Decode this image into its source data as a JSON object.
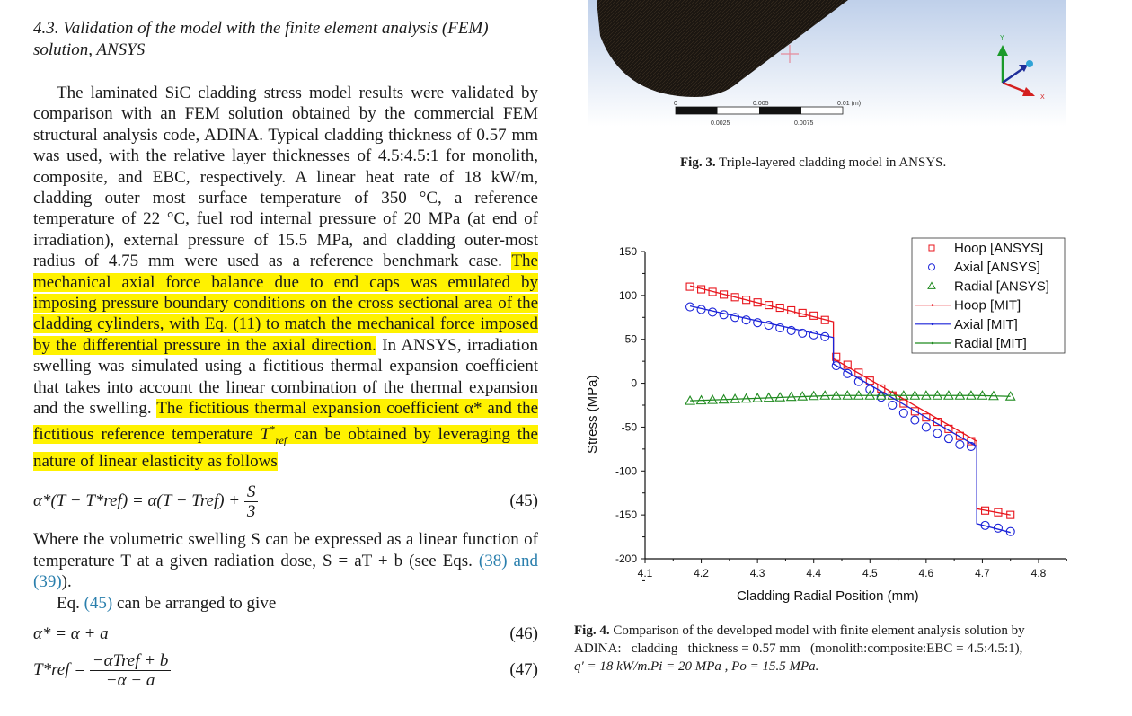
{
  "section": {
    "title_line1": "4.3. Validation of the model with the finite element analysis (FEM)",
    "title_line2": "solution, ANSYS"
  },
  "paragraph1": {
    "plain1": "The laminated SiC cladding stress model results were validated by comparison with an FEM solution obtained by the commercial FEM structural analysis code, ADINA. Typical cladding thickness of 0.57 mm was used, with the relative layer thicknesses of 4.5:4.5:1 for monolith, composite, and EBC, respectively. A linear heat rate of 18 kW/m, cladding outer most surface temperature of 350 °C, a reference temperature of 22 °C, fuel rod internal pressure of 20 MPa (at end of irradiation), external pressure of 15.5 MPa, and cladding outer-most radius of 4.75 mm were used as a reference benchmark case.",
    "highlight1": "The mechanical axial force balance due to end caps was emulated by imposing pressure boundary conditions on the cross sectional area of the cladding cylinders, with Eq. (11) to match the mechanical force imposed by the differential pressure in the axial direction.",
    "plain2": "In ANSYS, irradiation swelling was simulated using a fictitious thermal expansion coefficient that takes into account the linear combination of the thermal expansion and the swelling.",
    "highlight2a": "The fictitious thermal expansion coefficient α* and the fictitious reference temperature ",
    "highlight2_sym": "T",
    "highlight2_sup": "*",
    "highlight2_sub": "ref",
    "highlight2b": " can be obtained by leveraging the nature of linear elasticity as follows"
  },
  "equations": {
    "eq45": {
      "lhs": "α*(T − T*ref)",
      "rhs": "= α(T − Tref) +",
      "frac_top": "S",
      "frac_bottom": "3",
      "number": "(45)"
    },
    "eq46": {
      "text": "α* = α + a",
      "number": "(46)"
    },
    "eq47": {
      "lhs": "T*ref =",
      "frac_top": "−αTref + b",
      "frac_bottom": "−α − a",
      "number": "(47)"
    }
  },
  "paragraph2": {
    "text": "Where the volumetric swelling S can be expressed as a linear function of temperature T at a given radiation dose, S = aT + b (see Eqs. ",
    "link": "(38) and (39)",
    "end": ")."
  },
  "paragraph3": {
    "text_start": "Eq. ",
    "link": "(45)",
    "text_end": " can be arranged to give"
  },
  "figure3": {
    "scale_labels_top": [
      "0",
      "0.005",
      "0.01 (m)"
    ],
    "scale_labels_bottom": [
      "0.0025",
      "0.0075"
    ],
    "axis_labels": [
      "Y",
      "X"
    ],
    "caption_label": "Fig. 3.",
    "caption_text": "Triple-layered cladding model in ANSYS."
  },
  "figure4": {
    "caption_label": "Fig. 4.",
    "caption_line1": "Comparison of the developed model with finite element analysis solution by",
    "caption_line2": "ADINA:   cladding   thickness = 0.57 mm   (monolith:composite:EBC = 4.5:4.5:1),",
    "caption_line3": "q′ = 18 kW/m.Pi = 20 MPa , Po = 15.5 MPa."
  },
  "chart_data": {
    "type": "line",
    "title": "",
    "xlabel": "Cladding Radial Position (mm)",
    "ylabel": "Stress (MPa)",
    "xlim": [
      4.1,
      4.8
    ],
    "ylim": [
      -200,
      150
    ],
    "xticks": [
      "4.1",
      "4.2",
      "4.3",
      "4.4",
      "4.5",
      "4.6",
      "4.7",
      "4.8"
    ],
    "yticks": [
      "150",
      "100",
      "50",
      "0",
      "-50",
      "-100",
      "-150",
      "-200"
    ],
    "grid": false,
    "legend_position": "upper right",
    "legend": [
      "Hoop [ANSYS]",
      "Axial  [ANSYS]",
      "Radial [ANSYS]",
      "Hoop [MIT]",
      "Axial  [MIT]",
      "Radial [MIT]"
    ],
    "colors": {
      "hoop": "#e8141c",
      "axial": "#1a22d8",
      "radial": "#1f8a1f"
    },
    "series": [
      {
        "name": "Hoop [ANSYS]",
        "marker": "square",
        "x": [
          4.18,
          4.2,
          4.22,
          4.24,
          4.26,
          4.28,
          4.3,
          4.32,
          4.34,
          4.36,
          4.38,
          4.4,
          4.42,
          4.44,
          4.46,
          4.48,
          4.5,
          4.52,
          4.54,
          4.56,
          4.58,
          4.6,
          4.62,
          4.64,
          4.66,
          4.68,
          4.705,
          4.728,
          4.75
        ],
        "y": [
          110,
          107,
          104,
          101,
          98,
          95,
          92,
          89,
          86,
          83,
          80,
          77,
          72,
          30,
          21,
          12,
          3,
          -6,
          -14,
          -23,
          -32,
          -39,
          -44,
          -52,
          -60,
          -66,
          -145,
          -147,
          -150
        ]
      },
      {
        "name": "Axial  [ANSYS]",
        "marker": "circle",
        "x": [
          4.18,
          4.2,
          4.22,
          4.24,
          4.26,
          4.28,
          4.3,
          4.32,
          4.34,
          4.36,
          4.38,
          4.4,
          4.42,
          4.44,
          4.46,
          4.48,
          4.5,
          4.52,
          4.54,
          4.56,
          4.58,
          4.6,
          4.62,
          4.64,
          4.66,
          4.68,
          4.705,
          4.728,
          4.75
        ],
        "y": [
          87,
          84,
          81,
          78,
          75,
          72,
          69,
          66,
          63,
          60,
          57,
          55,
          53,
          20,
          11,
          2,
          -7,
          -16,
          -25,
          -34,
          -42,
          -50,
          -57,
          -63,
          -70,
          -72,
          -162,
          -165,
          -169
        ]
      },
      {
        "name": "Radial [ANSYS]",
        "marker": "triangle",
        "x": [
          4.18,
          4.2,
          4.22,
          4.24,
          4.26,
          4.28,
          4.3,
          4.32,
          4.34,
          4.36,
          4.38,
          4.4,
          4.42,
          4.44,
          4.46,
          4.48,
          4.5,
          4.52,
          4.54,
          4.56,
          4.58,
          4.6,
          4.62,
          4.64,
          4.66,
          4.68,
          4.7,
          4.72,
          4.75
        ],
        "y": [
          -20,
          -19.5,
          -19,
          -18.5,
          -18,
          -17.5,
          -17,
          -16.5,
          -16,
          -15.5,
          -15,
          -14.5,
          -14,
          -14,
          -14,
          -14,
          -14,
          -14,
          -14,
          -14,
          -14,
          -14,
          -14,
          -14,
          -14,
          -14,
          -14,
          -14.5,
          -15
        ]
      },
      {
        "name": "Hoop [MIT]",
        "marker": "line",
        "x": [
          4.18,
          4.435,
          4.435,
          4.69,
          4.69,
          4.75
        ],
        "y": [
          111,
          70,
          28,
          -66,
          -143,
          -150
        ]
      },
      {
        "name": "Axial  [MIT]",
        "marker": "line",
        "x": [
          4.18,
          4.435,
          4.435,
          4.69,
          4.69,
          4.75
        ],
        "y": [
          88,
          52,
          22,
          -72,
          -160,
          -170
        ]
      },
      {
        "name": "Radial [MIT]",
        "marker": "line",
        "x": [
          4.18,
          4.435,
          4.69,
          4.75
        ],
        "y": [
          -20,
          -14,
          -14,
          -15
        ]
      }
    ]
  }
}
